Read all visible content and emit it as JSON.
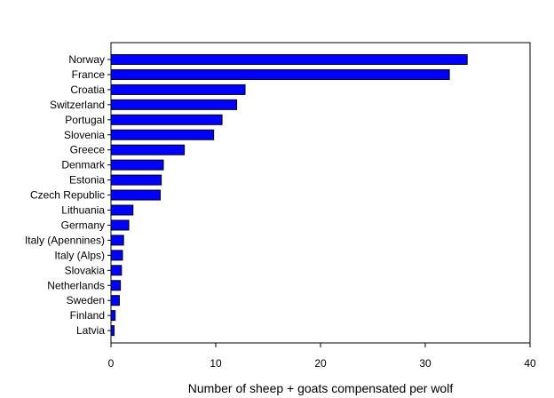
{
  "chart_data": {
    "type": "bar",
    "orientation": "horizontal",
    "title": "",
    "xlabel": "Number of sheep + goats compensated per wolf",
    "ylabel": "",
    "xlim": [
      0,
      40
    ],
    "xticks": [
      0,
      10,
      20,
      30,
      40
    ],
    "grid": false,
    "legend": "none",
    "bar_color": "#0000ff",
    "bar_edge_color": "#000000",
    "categories": [
      "Norway",
      "France",
      "Croatia",
      "Switzerland",
      "Portugal",
      "Slovenia",
      "Greece",
      "Denmark",
      "Estonia",
      "Czech Republic",
      "Lithuania",
      "Germany",
      "Italy (Apennines)",
      "Italy (Alps)",
      "Slovakia",
      "Netherlands",
      "Sweden",
      "Finland",
      "Latvia"
    ],
    "values": [
      34.0,
      32.3,
      12.8,
      12.0,
      10.6,
      9.8,
      7.0,
      5.0,
      4.8,
      4.7,
      2.1,
      1.7,
      1.2,
      1.1,
      1.0,
      0.9,
      0.8,
      0.4,
      0.3
    ]
  }
}
